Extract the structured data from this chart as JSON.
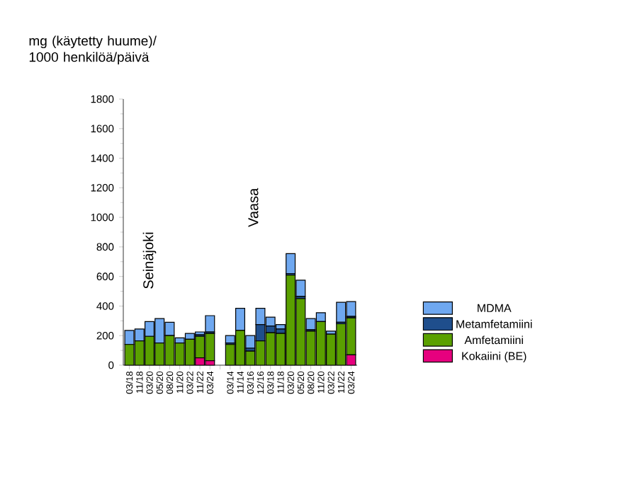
{
  "chart_data": {
    "type": "bar",
    "stacked": true,
    "ylabel": "mg (käytetty huume)/ 1000 henkilöä/päivä",
    "categories": [
      "03/18",
      "11/18",
      "03/20",
      "05/20",
      "08/20",
      "11/20",
      "03/22",
      "11/22",
      "03/24",
      null,
      "03/14",
      "11/14",
      "03/16",
      "12/16",
      "03/18",
      "11/18",
      "03/20",
      "05/20",
      "08/20",
      "11/20",
      "03/22",
      "11/22",
      "03/24"
    ],
    "series": [
      {
        "name": "Kokaiini (BE)",
        "color": "#e6007e",
        "values": [
          0,
          0,
          0,
          0,
          0,
          0,
          0,
          50,
          30,
          null,
          0,
          0,
          0,
          0,
          0,
          0,
          0,
          0,
          0,
          0,
          0,
          0,
          70
        ]
      },
      {
        "name": "Amfetamiini",
        "color": "#5aa000",
        "values": [
          140,
          165,
          195,
          150,
          200,
          150,
          175,
          145,
          185,
          null,
          140,
          235,
          95,
          165,
          220,
          215,
          610,
          450,
          230,
          295,
          210,
          280,
          250
        ]
      },
      {
        "name": "Metamfetamiini",
        "color": "#1f4e8c",
        "values": [
          0,
          0,
          0,
          0,
          0,
          0,
          0,
          10,
          10,
          null,
          10,
          0,
          20,
          110,
          45,
          30,
          10,
          15,
          10,
          0,
          0,
          10,
          10
        ]
      },
      {
        "name": "MDMA",
        "color": "#6fa8f0",
        "values": [
          95,
          80,
          100,
          165,
          90,
          35,
          40,
          20,
          110,
          null,
          50,
          150,
          85,
          110,
          60,
          30,
          135,
          110,
          75,
          60,
          20,
          135,
          100
        ]
      }
    ],
    "annotations": [
      "Seinäjoki",
      "Vaasa"
    ],
    "ylim": [
      0,
      1800
    ],
    "yticks": [
      0,
      200,
      400,
      600,
      800,
      1000,
      1200,
      1400,
      1600,
      1800
    ],
    "legend": "right"
  }
}
